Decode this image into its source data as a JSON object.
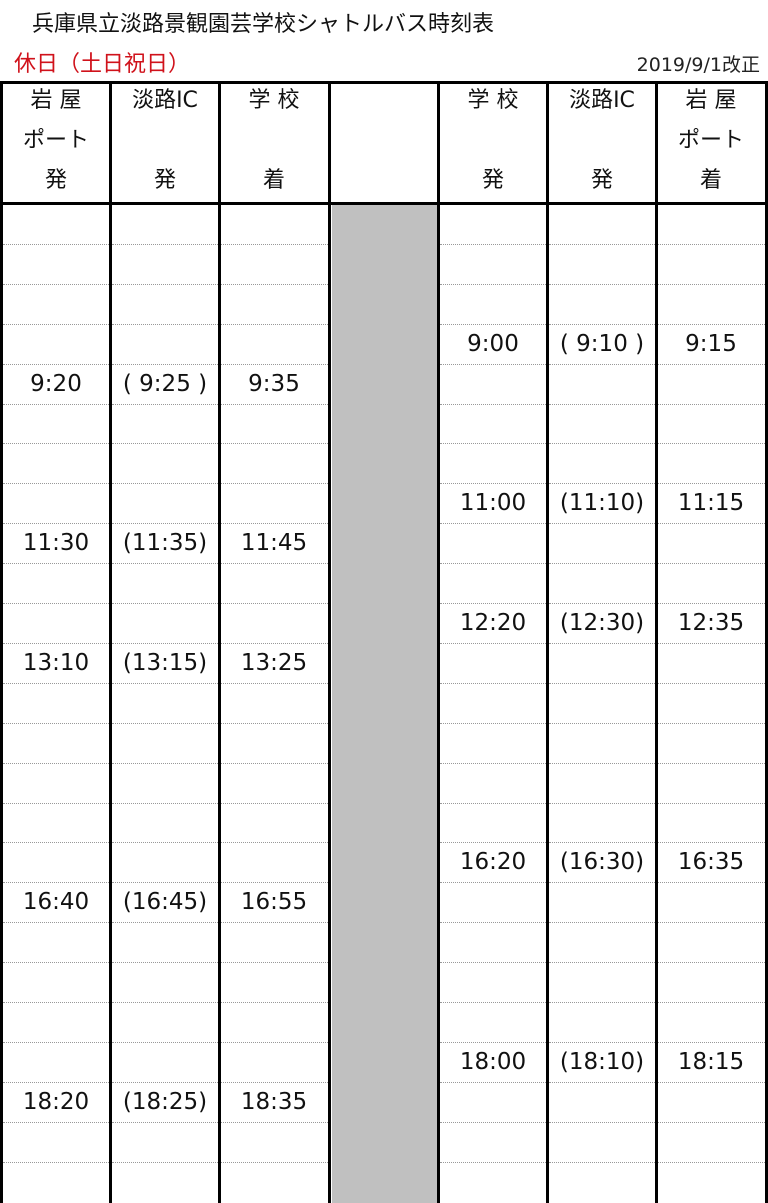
{
  "title": "兵庫県立淡路景観園芸学校シャトルバス時刻表",
  "subtitle": "休日（土日祝日）",
  "revision": "2019/9/1改正",
  "colors": {
    "subtitle": "#d0121b",
    "divider_column": "#c0c0c0"
  },
  "headers": [
    [
      "岩 屋",
      "ポート",
      "発"
    ],
    [
      "淡路IC",
      "",
      "発"
    ],
    [
      "学 校",
      "",
      "着"
    ],
    [
      "",
      "",
      ""
    ],
    [
      "学 校",
      "",
      "発"
    ],
    [
      "淡路IC",
      "",
      "発"
    ],
    [
      "岩 屋",
      "ポート",
      "着"
    ]
  ],
  "rows": [
    [
      "",
      "",
      "",
      "",
      "",
      "",
      ""
    ],
    [
      "",
      "",
      "",
      "",
      "",
      "",
      ""
    ],
    [
      "",
      "",
      "",
      "",
      "",
      "",
      ""
    ],
    [
      "",
      "",
      "",
      "",
      "9:00",
      "( 9:10 )",
      "9:15"
    ],
    [
      "9:20",
      "( 9:25 )",
      "9:35",
      "",
      "",
      "",
      ""
    ],
    [
      "",
      "",
      "",
      "",
      "",
      "",
      ""
    ],
    [
      "",
      "",
      "",
      "",
      "",
      "",
      ""
    ],
    [
      "",
      "",
      "",
      "",
      "11:00",
      "(11:10)",
      "11:15"
    ],
    [
      "11:30",
      "(11:35)",
      "11:45",
      "",
      "",
      "",
      ""
    ],
    [
      "",
      "",
      "",
      "",
      "",
      "",
      ""
    ],
    [
      "",
      "",
      "",
      "",
      "12:20",
      "(12:30)",
      "12:35"
    ],
    [
      "13:10",
      "(13:15)",
      "13:25",
      "",
      "",
      "",
      ""
    ],
    [
      "",
      "",
      "",
      "",
      "",
      "",
      ""
    ],
    [
      "",
      "",
      "",
      "",
      "",
      "",
      ""
    ],
    [
      "",
      "",
      "",
      "",
      "",
      "",
      ""
    ],
    [
      "",
      "",
      "",
      "",
      "",
      "",
      ""
    ],
    [
      "",
      "",
      "",
      "",
      "16:20",
      "(16:30)",
      "16:35"
    ],
    [
      "16:40",
      "(16:45)",
      "16:55",
      "",
      "",
      "",
      ""
    ],
    [
      "",
      "",
      "",
      "",
      "",
      "",
      ""
    ],
    [
      "",
      "",
      "",
      "",
      "",
      "",
      ""
    ],
    [
      "",
      "",
      "",
      "",
      "",
      "",
      ""
    ],
    [
      "",
      "",
      "",
      "",
      "18:00",
      "(18:10)",
      "18:15"
    ],
    [
      "18:20",
      "(18:25)",
      "18:35",
      "",
      "",
      "",
      ""
    ],
    [
      "",
      "",
      "",
      "",
      "",
      "",
      ""
    ],
    [
      "",
      "",
      "",
      "",
      "",
      "",
      ""
    ]
  ]
}
